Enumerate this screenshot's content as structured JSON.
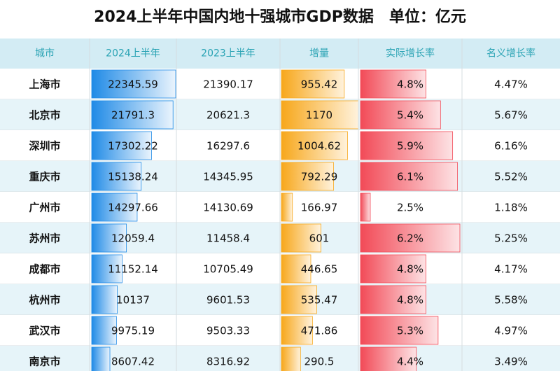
{
  "title": "2024上半年中国内地十强城市GDP数据　单位：亿元",
  "table": {
    "columns": [
      "城市",
      "2024上半年",
      "2023上半年",
      "增量",
      "实际增长率",
      "名义增长率"
    ],
    "rows": [
      [
        "上海市",
        22345.59,
        21390.17,
        955.42,
        {
          "value": 4.8,
          "label": "4.8%"
        },
        {
          "value": 4.47,
          "label": "4.47%"
        }
      ],
      [
        "北京市",
        21791.3,
        20621.3,
        1170,
        {
          "value": 5.4,
          "label": "5.4%"
        },
        {
          "value": 5.67,
          "label": "5.67%"
        }
      ],
      [
        "深圳市",
        17302.22,
        16297.6,
        1004.62,
        {
          "value": 5.9,
          "label": "5.9%"
        },
        {
          "value": 6.16,
          "label": "6.16%"
        }
      ],
      [
        "重庆市",
        15138.24,
        14345.95,
        792.29,
        {
          "value": 6.1,
          "label": "6.1%"
        },
        {
          "value": 5.52,
          "label": "5.52%"
        }
      ],
      [
        "广州市",
        14297.66,
        14130.69,
        166.97,
        {
          "value": 2.5,
          "label": "2.5%"
        },
        {
          "value": 1.18,
          "label": "1.18%"
        }
      ],
      [
        "苏州市",
        12059.4,
        11458.4,
        601,
        {
          "value": 6.2,
          "label": "6.2%"
        },
        {
          "value": 5.25,
          "label": "5.25%"
        }
      ],
      [
        "成都市",
        11152.14,
        10705.49,
        446.65,
        {
          "value": 4.8,
          "label": "4.8%"
        },
        {
          "value": 4.17,
          "label": "4.17%"
        }
      ],
      [
        "杭州市",
        10137,
        9601.53,
        535.47,
        {
          "value": 4.8,
          "label": "4.8%"
        },
        {
          "value": 5.58,
          "label": "5.58%"
        }
      ],
      [
        "武汉市",
        9975.19,
        9503.33,
        471.86,
        {
          "value": 5.3,
          "label": "5.3%"
        },
        {
          "value": 4.97,
          "label": "4.97%"
        }
      ],
      [
        "南京市",
        8607.42,
        8316.92,
        290.5,
        {
          "value": 4.4,
          "label": "4.4%"
        },
        {
          "value": 3.49,
          "label": "3.49%"
        }
      ]
    ]
  }
}
